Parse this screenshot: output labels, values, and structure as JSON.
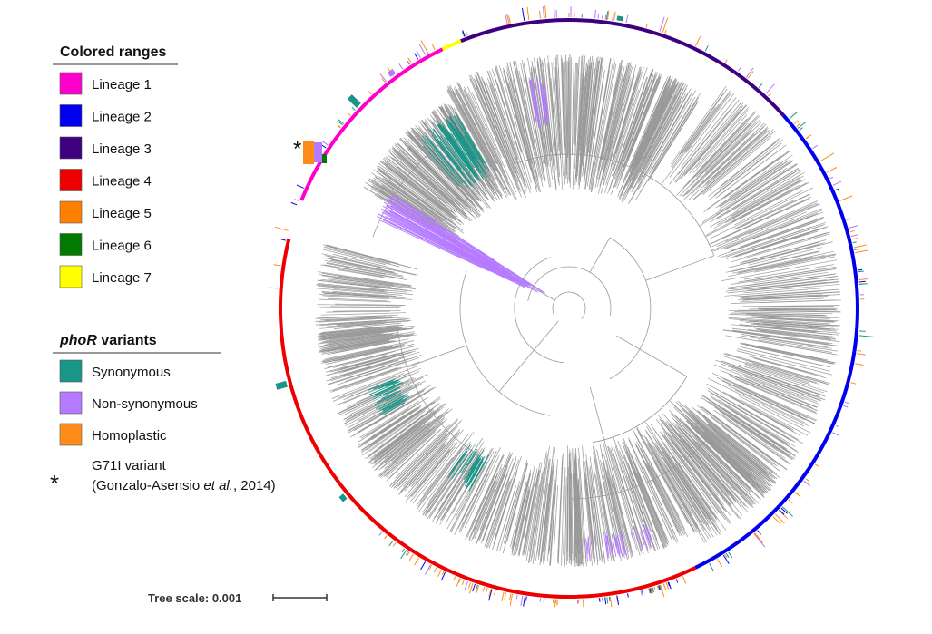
{
  "legend_ranges": {
    "title": "Colored ranges",
    "items": [
      {
        "label": "Lineage 1",
        "color": "#ff00cc"
      },
      {
        "label": "Lineage 2",
        "color": "#0000ee"
      },
      {
        "label": "Lineage 3",
        "color": "#3d0080"
      },
      {
        "label": "Lineage 4",
        "color": "#ee0000"
      },
      {
        "label": "Lineage 5",
        "color": "#ff8000"
      },
      {
        "label": "Lineage 6",
        "color": "#007a00"
      },
      {
        "label": "Lineage 7",
        "color": "#ffff00"
      }
    ]
  },
  "legend_variants": {
    "title_italic": "phoR",
    "title_rest": " variants",
    "items": [
      {
        "label": "Synonymous",
        "color": "#1a9688"
      },
      {
        "label": "Non-synonymous",
        "color": "#b57aff"
      },
      {
        "label": "Homoplastic",
        "color": "#ff8c1a"
      }
    ],
    "g71i": {
      "symbol": "*",
      "line1": "G71I variant",
      "line2_pre": "(Gonzalo-Asensio ",
      "line2_italic": "et al.",
      "line2_post": ", 2014)"
    }
  },
  "tree": {
    "scale_label": "Tree scale: 0.001",
    "star_marker": "*",
    "branch_color": "#999999",
    "ring_segments": [
      {
        "lineage": "Lineage 4",
        "color": "#ee0000"
      },
      {
        "lineage": "Lineage 1",
        "color": "#ff00cc"
      },
      {
        "lineage": "Lineage 7",
        "color": "#ffff00"
      },
      {
        "lineage": "Lineage 3",
        "color": "#3d0080"
      },
      {
        "lineage": "Lineage 2",
        "color": "#0000ee"
      }
    ]
  }
}
